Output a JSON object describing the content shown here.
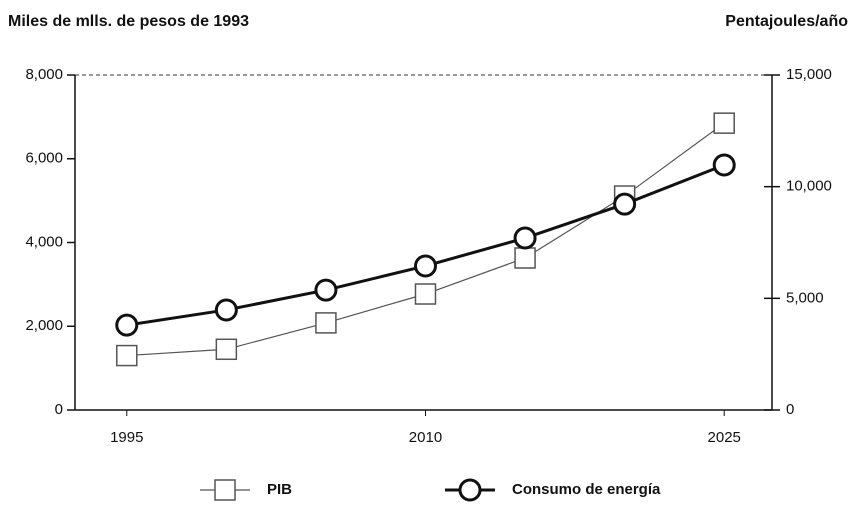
{
  "chart_data": {
    "type": "line",
    "y_label": "Miles de mlls. de pesos de 1993",
    "y2_label": "Pentajoules/año",
    "x": [
      1995,
      2000,
      2005,
      2010,
      2015,
      2020,
      2025
    ],
    "xlim": [
      1992.4,
      2027.4
    ],
    "xticks": [
      1995,
      2010,
      2025
    ],
    "ylim": [
      0,
      8000
    ],
    "yticks": [
      0,
      {
        "value": 2000,
        "label": "2,000"
      },
      {
        "value": 4000,
        "label": "4,000"
      },
      {
        "value": 6000,
        "label": "6,000"
      },
      {
        "value": 8000,
        "label": "8,000"
      }
    ],
    "y2lim": [
      0,
      15000
    ],
    "y2ticks": [
      0,
      {
        "value": 5000,
        "label": "5,000"
      },
      {
        "value": 10000,
        "label": "10,000"
      },
      {
        "value": 15000,
        "label": "15,000"
      }
    ],
    "series": [
      {
        "name": "PIB",
        "color": "#555555",
        "marker": "square",
        "values": [
          1300,
          1450,
          2080,
          2770,
          3630,
          5110,
          6850
        ]
      },
      {
        "name": "Consumo de energía",
        "color": "#111111",
        "marker": "circle",
        "axis": "y2",
        "values": [
          3800,
          4480,
          5370,
          6450,
          7700,
          9220,
          10970
        ]
      }
    ]
  }
}
